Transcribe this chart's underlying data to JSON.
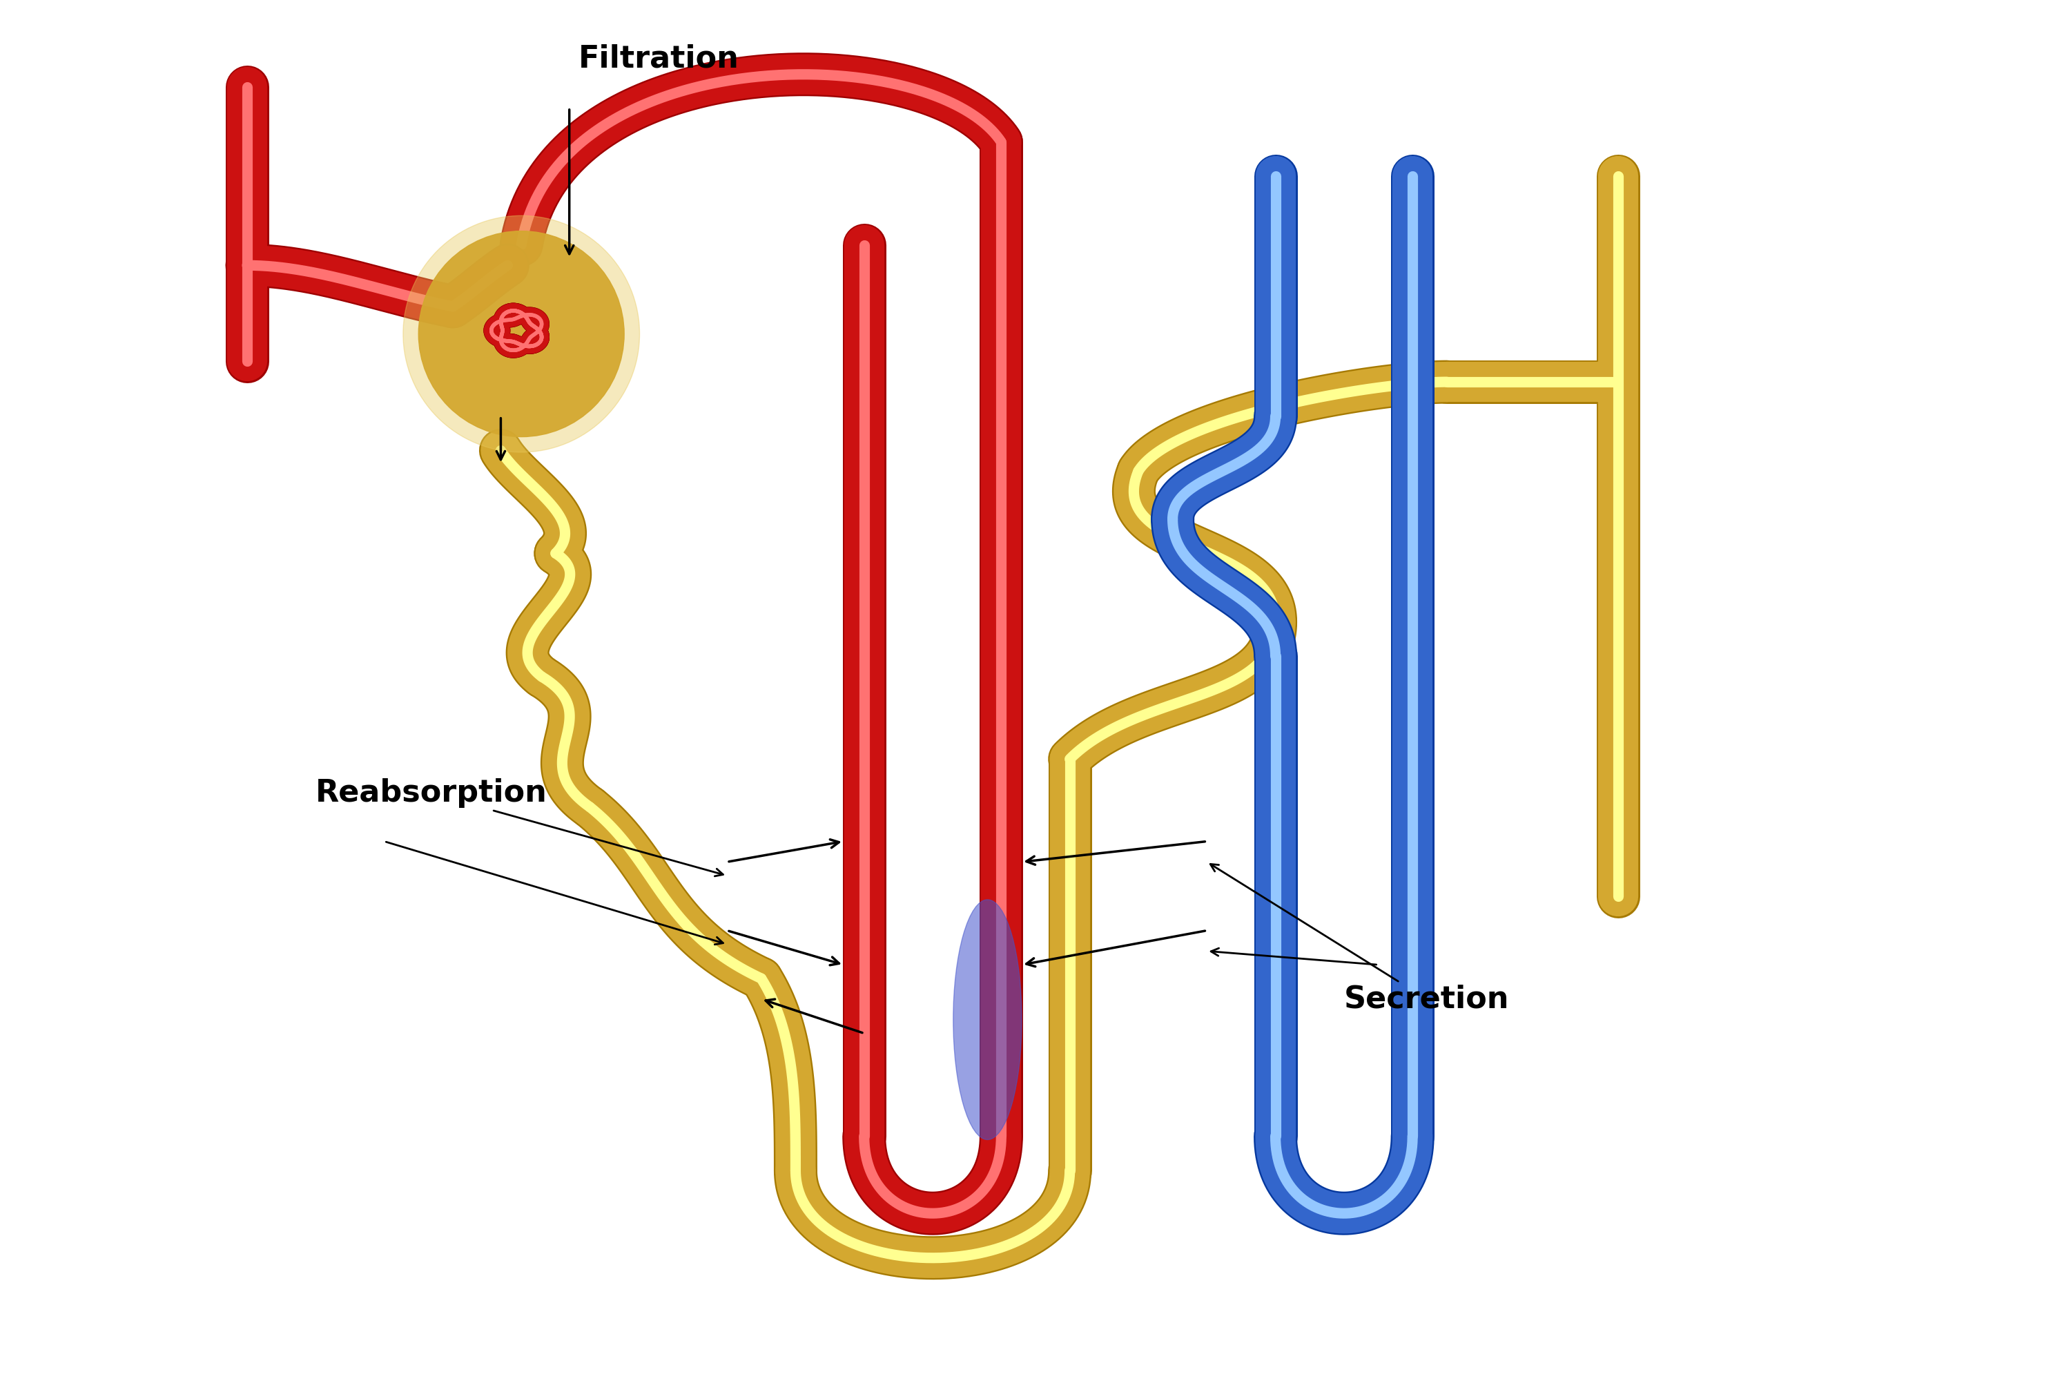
{
  "background_color": "#ffffff",
  "red_color": "#CC1111",
  "blue_color": "#3366CC",
  "gold_color": "#D4A830",
  "glom_bg_color": "#D4A830",
  "label_filtration": "Filtration",
  "label_reabsorption": "Reabsorption",
  "label_secretion": "Secretion",
  "label_fontsize": 32,
  "tube_lw": 42,
  "xlim": [
    0,
    30
  ],
  "ylim": [
    0,
    20
  ]
}
